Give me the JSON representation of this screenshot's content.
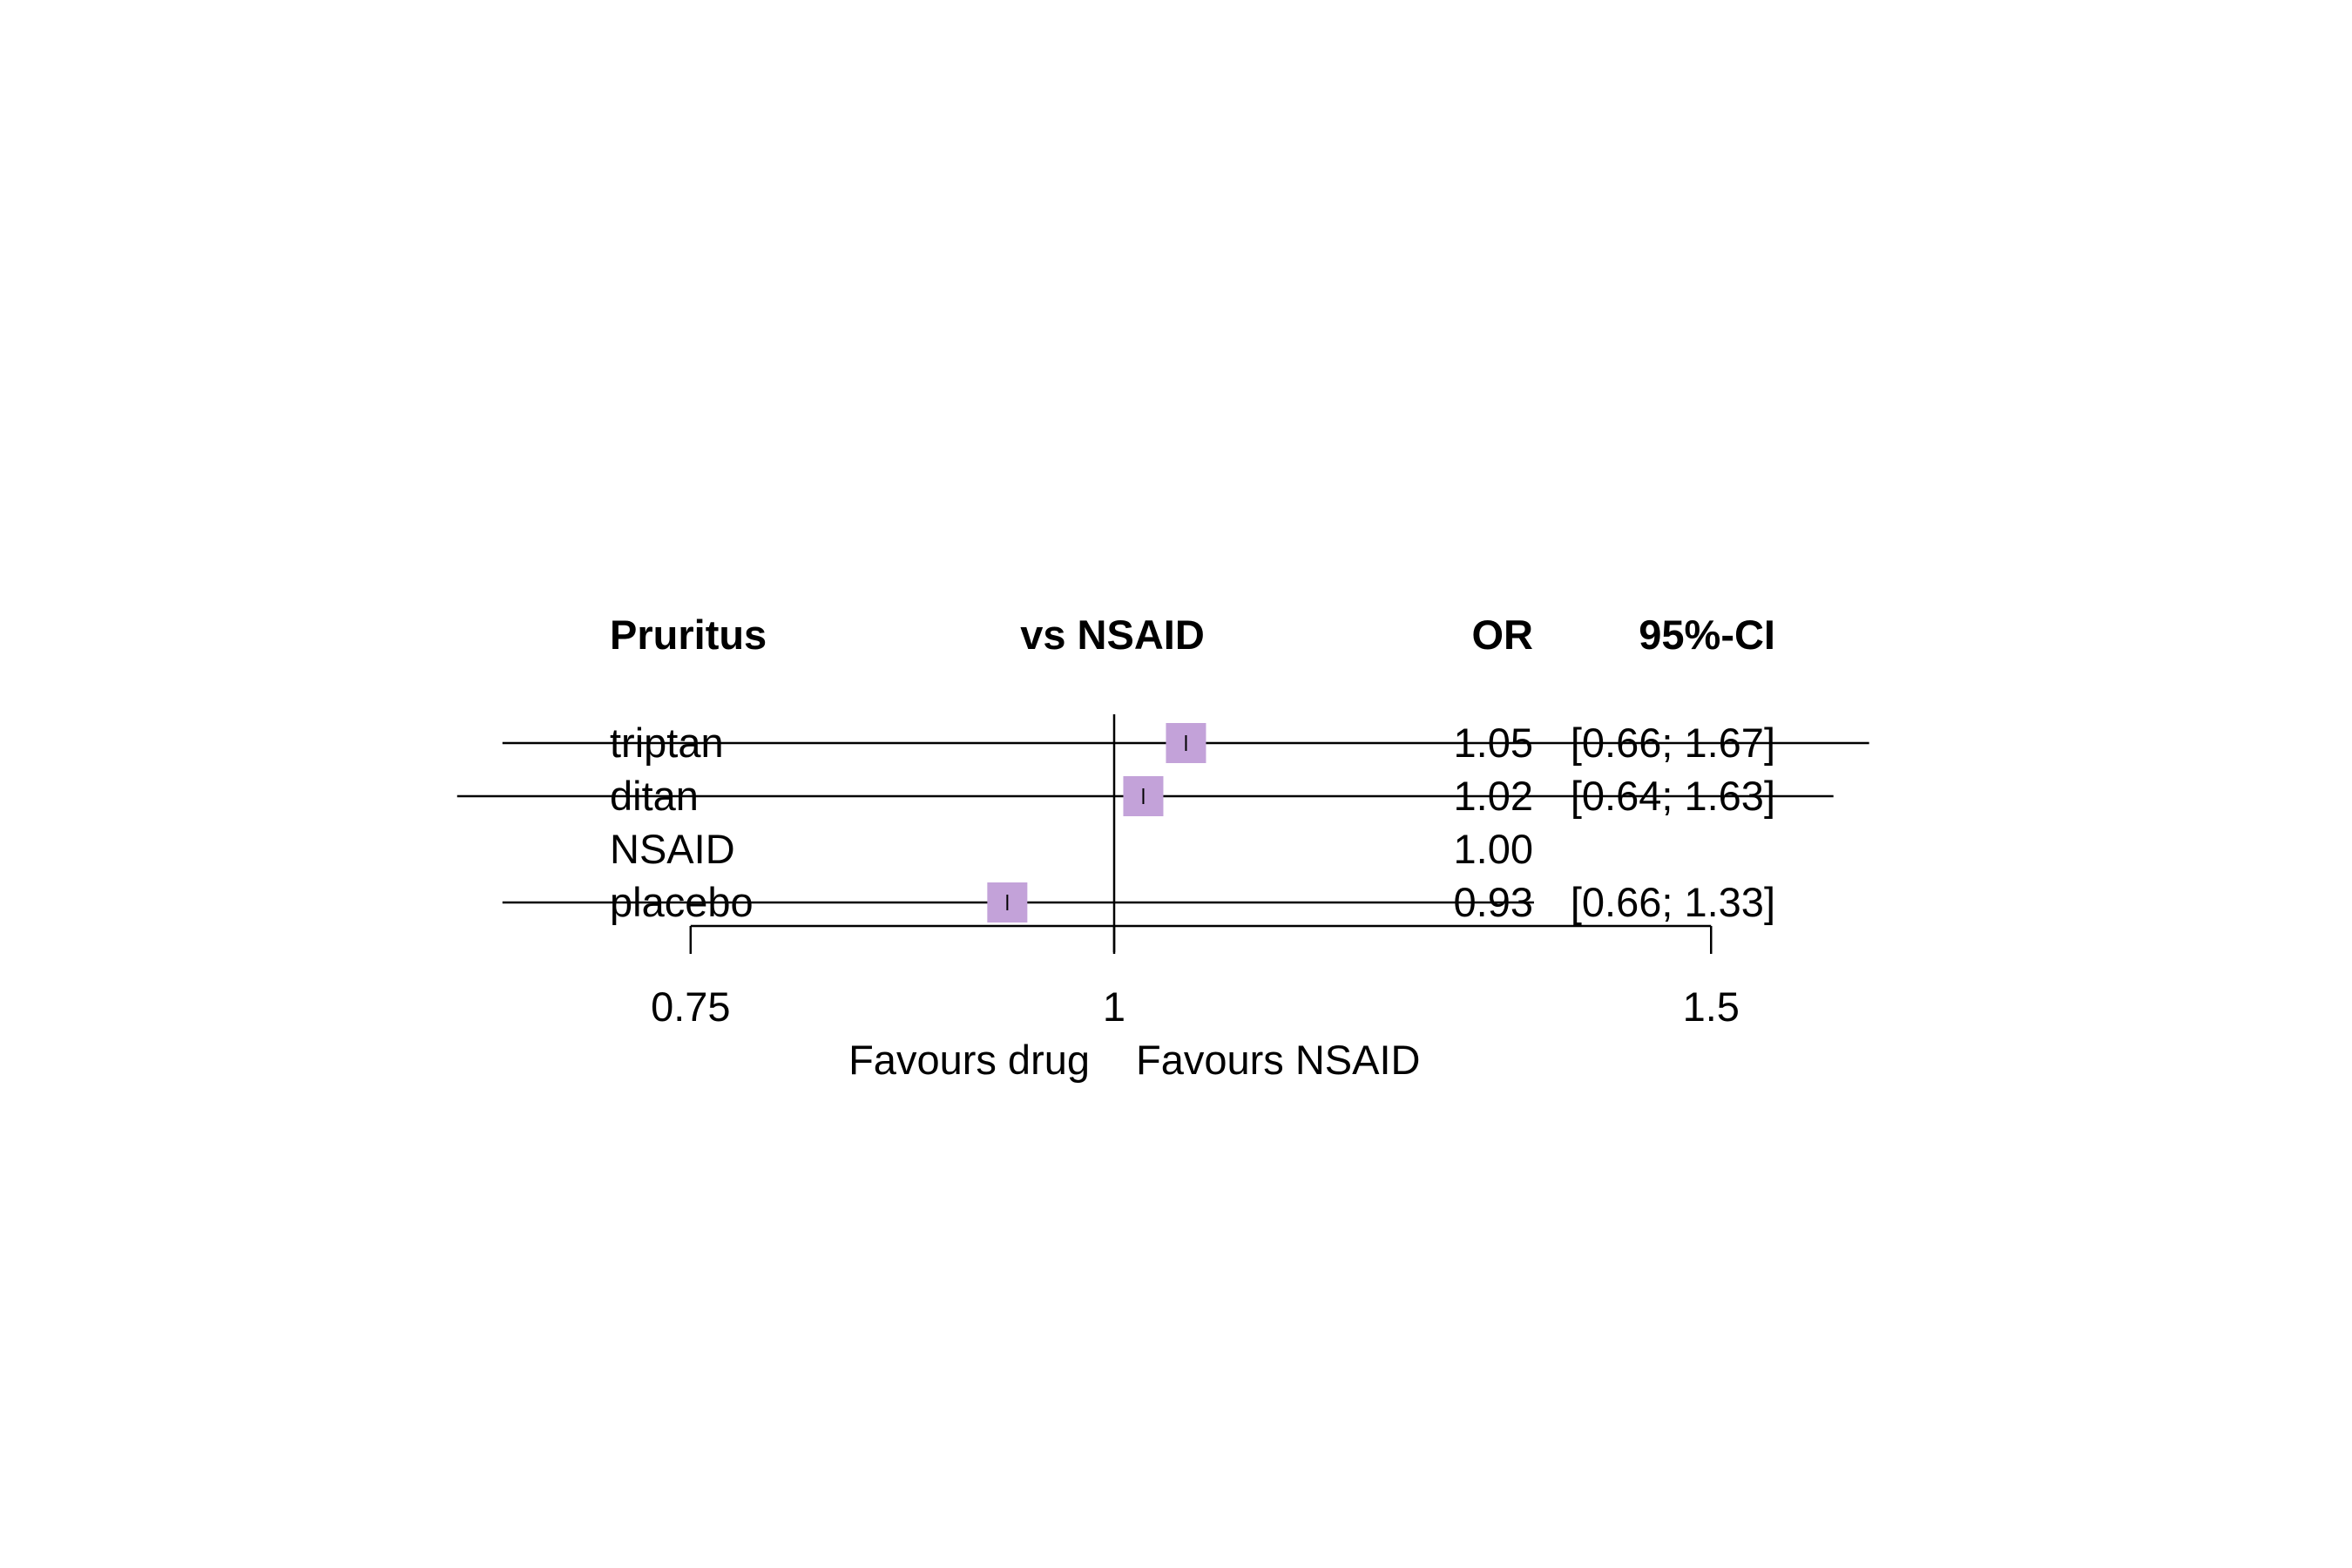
{
  "chart_data": {
    "type": "forest",
    "outcome_header": "Pruritus",
    "comparison_header": "vs NSAID",
    "estimate_header": "OR",
    "ci_header": "95%-CI",
    "reference": "NSAID",
    "log_scale": true,
    "xlim": [
      0.75,
      1.5
    ],
    "xticks": [
      0.75,
      1,
      1.5
    ],
    "xtick_labels": [
      "0.75",
      "1",
      "1.5"
    ],
    "favours_left": "Favours drug",
    "favours_right": "Favours NSAID",
    "marker_color": "#c3a2d9",
    "rows": [
      {
        "label": "triptan",
        "or": 1.05,
        "lower": 0.66,
        "upper": 1.67,
        "or_text": "1.05",
        "ci_text": "[0.66; 1.67]"
      },
      {
        "label": "ditan",
        "or": 1.02,
        "lower": 0.64,
        "upper": 1.63,
        "or_text": "1.02",
        "ci_text": "[0.64; 1.63]"
      },
      {
        "label": "NSAID",
        "or": 1.0,
        "lower": null,
        "upper": null,
        "or_text": "1.00",
        "ci_text": ""
      },
      {
        "label": "placebo",
        "or": 0.93,
        "lower": 0.66,
        "upper": 1.33,
        "or_text": "0.93",
        "ci_text": "[0.66; 1.33]"
      }
    ]
  }
}
